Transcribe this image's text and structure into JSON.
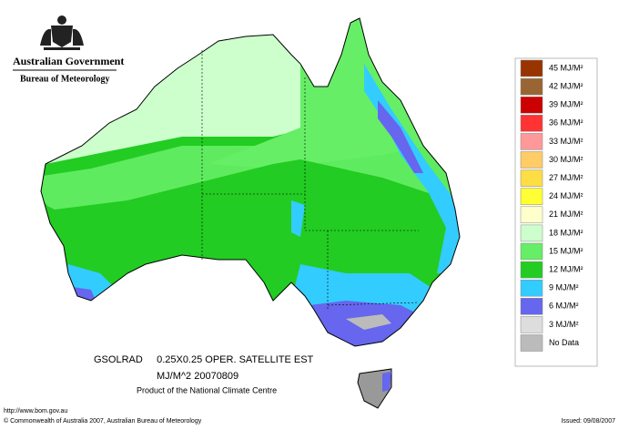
{
  "header": {
    "line1": "Australian Government",
    "line2": "Bureau of Meteorology"
  },
  "legend": [
    {
      "label": "45 MJ/M²",
      "color": "#993300"
    },
    {
      "label": "42 MJ/M²",
      "color": "#996633"
    },
    {
      "label": "39 MJ/M²",
      "color": "#cc0000"
    },
    {
      "label": "36 MJ/M²",
      "color": "#ff3333"
    },
    {
      "label": "33 MJ/M²",
      "color": "#ff9999"
    },
    {
      "label": "30 MJ/M²",
      "color": "#ffcc66"
    },
    {
      "label": "27 MJ/M²",
      "color": "#ffdd44"
    },
    {
      "label": "24 MJ/M²",
      "color": "#ffff33"
    },
    {
      "label": "21 MJ/M²",
      "color": "#ffffcc"
    },
    {
      "label": "18 MJ/M²",
      "color": "#ccffcc"
    },
    {
      "label": "15 MJ/M²",
      "color": "#66ee66"
    },
    {
      "label": "12 MJ/M²",
      "color": "#22cc22"
    },
    {
      "label": "9 MJ/M²",
      "color": "#33ccff"
    },
    {
      "label": "6 MJ/M²",
      "color": "#6666ee"
    },
    {
      "label": "3 MJ/M²",
      "color": "#dddddd"
    },
    {
      "label": "No Data",
      "color": "#bbbbbb"
    }
  ],
  "caption": {
    "line1": "GSOLRAD     0.25X0.25 OPER. SATELLITE EST",
    "line2": "MJ/M^2  20070809",
    "line3": "Product of the National Climate Centre"
  },
  "footer": {
    "url": "http://www.bom.gov.au",
    "copyright": "© Commonwealth of Australia 2007, Australian Bureau of Meteorology",
    "issued": "Issued: 09/08/2007"
  }
}
